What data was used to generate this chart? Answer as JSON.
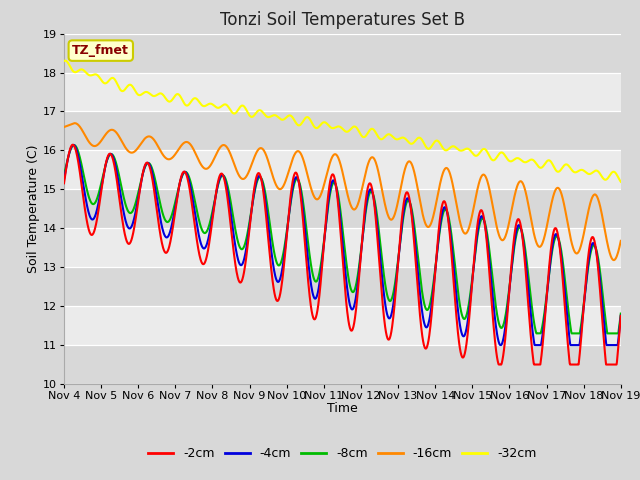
{
  "title": "Tonzi Soil Temperatures Set B",
  "xlabel": "Time",
  "ylabel": "Soil Temperature (C)",
  "ylim": [
    10.0,
    19.0
  ],
  "yticks": [
    10.0,
    11.0,
    12.0,
    13.0,
    14.0,
    15.0,
    16.0,
    17.0,
    18.0,
    19.0
  ],
  "xtick_labels": [
    "Nov 4",
    "Nov 5",
    "Nov 6",
    "Nov 7",
    "Nov 8",
    "Nov 9",
    "Nov 10",
    "Nov 11",
    "Nov 12",
    "Nov 13",
    "Nov 14",
    "Nov 15",
    "Nov 16",
    "Nov 17",
    "Nov 18",
    "Nov 19"
  ],
  "colors": {
    "-2cm": "#ff0000",
    "-4cm": "#0000dd",
    "-8cm": "#00bb00",
    "-16cm": "#ff8800",
    "-32cm": "#ffff00"
  },
  "legend_label": "TZ_fmet",
  "legend_bg": "#ffffcc",
  "legend_border": "#cccc00",
  "legend_text_color": "#880000",
  "fig_bg": "#d8d8d8",
  "plot_bg": "#ebebeb",
  "band_light": "#ebebeb",
  "band_dark": "#d8d8d8",
  "title_fontsize": 12,
  "axis_fontsize": 9,
  "tick_fontsize": 8,
  "n_points": 1440,
  "total_days": 15
}
